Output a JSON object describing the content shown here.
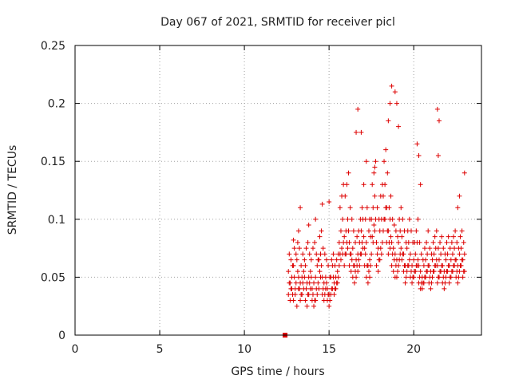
{
  "chart_data": {
    "type": "scatter",
    "title": "Day 067 of 2021, SRMTID for receiver picl",
    "xlabel": "GPS time / hours",
    "ylabel": "SRMTID / TECUs",
    "xlim": [
      0,
      24
    ],
    "ylim": [
      0,
      0.25
    ],
    "xticks": [
      0,
      5,
      10,
      15,
      20
    ],
    "xtick_labels": [
      "0",
      "5",
      "10",
      "15",
      "20"
    ],
    "yticks": [
      0,
      0.05,
      0.1,
      0.15,
      0.2,
      0.25
    ],
    "ytick_labels": [
      "0",
      "0.05",
      "0.1",
      "0.15",
      "0.2",
      "0.25"
    ],
    "grid": true,
    "marker": "plus",
    "color": "#dd0000",
    "square_marker": {
      "x": 12.4,
      "y": 0.0
    },
    "series": [
      {
        "name": "SRMTID",
        "x": [
          12.6,
          12.7,
          12.8,
          12.9,
          13.0,
          13.1,
          13.2,
          13.3,
          13.4,
          13.5,
          13.6,
          13.7,
          13.8,
          13.9,
          14.0,
          14.1,
          14.2,
          14.3,
          14.4,
          14.5,
          14.6,
          14.7,
          14.8,
          14.9,
          15.0,
          15.1,
          15.2,
          15.3,
          15.4,
          15.5,
          15.6,
          15.7,
          15.8,
          15.9,
          16.0,
          16.1,
          16.2,
          16.3,
          16.4,
          16.5,
          16.6,
          16.7,
          16.8,
          16.9,
          17.0,
          17.1,
          17.2,
          17.3,
          17.4,
          17.5,
          17.6,
          17.7,
          17.8,
          17.9,
          18.0,
          18.1,
          18.2,
          18.3,
          18.4,
          18.5,
          18.6,
          18.7,
          18.8,
          18.9,
          19.0,
          19.1,
          19.2,
          19.3,
          19.4,
          19.5,
          19.6,
          19.7,
          19.8,
          19.9,
          20.0,
          20.1,
          20.2,
          20.3,
          20.4,
          20.5,
          20.6,
          20.7,
          20.8,
          20.9,
          21.0,
          21.1,
          21.2,
          21.3,
          21.4,
          21.5,
          21.6,
          21.7,
          21.8,
          21.9,
          22.0,
          22.1,
          22.2,
          22.3,
          22.4,
          22.5,
          22.6,
          22.7,
          22.8,
          22.9,
          23.0,
          12.6,
          12.7,
          12.8,
          12.9,
          13.0,
          13.1,
          13.2,
          13.3,
          13.4,
          13.5,
          13.6,
          13.7,
          13.8,
          13.9,
          14.0,
          14.1,
          14.2,
          14.3,
          14.4,
          14.5,
          14.6,
          14.7,
          14.8,
          14.9,
          15.0,
          15.1,
          15.2,
          15.3,
          15.4,
          15.5,
          15.6,
          15.7,
          15.8,
          15.9,
          16.0,
          16.1,
          16.2,
          16.3,
          16.4,
          16.5,
          16.6,
          16.7,
          16.8,
          16.9,
          17.0,
          17.1,
          17.2,
          17.3,
          17.4,
          17.5,
          17.6,
          17.7,
          17.8,
          17.9,
          18.0,
          18.1,
          18.2,
          18.3,
          18.4,
          18.5,
          18.6,
          18.7,
          18.8,
          18.9,
          19.0,
          19.1,
          19.2,
          19.3,
          19.4,
          19.5,
          19.6,
          19.7,
          19.8,
          19.9,
          20.0,
          20.1,
          20.2,
          20.3,
          20.4,
          20.5,
          20.6,
          20.7,
          20.8,
          20.9,
          21.0,
          21.1,
          21.2,
          21.3,
          21.4,
          21.5,
          21.6,
          21.7,
          21.8,
          21.9,
          22.0,
          22.1,
          22.2,
          22.3,
          22.4,
          22.5,
          22.6,
          22.7,
          22.8,
          22.9,
          23.0,
          12.65,
          12.75,
          12.85,
          12.95,
          13.05,
          13.15,
          13.25,
          13.35,
          13.45,
          13.55,
          13.65,
          13.75,
          13.85,
          13.95,
          14.05,
          14.15,
          14.25,
          14.35,
          14.45,
          14.55,
          14.65,
          14.75,
          14.85,
          14.95,
          15.05,
          15.15,
          15.25,
          15.35,
          15.45,
          15.55,
          15.65,
          15.75,
          15.85,
          15.95,
          16.05,
          16.15,
          16.25,
          16.35,
          16.45,
          16.55,
          16.65,
          16.75,
          16.85,
          16.95,
          17.05,
          17.15,
          17.25,
          17.35,
          17.45,
          17.55,
          17.65,
          17.75,
          17.85,
          17.95,
          18.05,
          18.15,
          18.25,
          18.35,
          18.45,
          18.55,
          18.65,
          18.75,
          18.85,
          18.95,
          19.05,
          19.15,
          19.25,
          19.35,
          19.45,
          19.55,
          19.65,
          19.75,
          19.85,
          19.95,
          20.05,
          20.15,
          20.25,
          20.35,
          20.45,
          20.55,
          20.65,
          20.75,
          20.85,
          20.95,
          21.05,
          21.15,
          21.25,
          21.35,
          21.45,
          21.55,
          21.65,
          21.75,
          21.85,
          21.95,
          22.05,
          22.15,
          22.25,
          22.35,
          22.45,
          22.55,
          22.65,
          22.75,
          22.85,
          22.95,
          12.65,
          12.75,
          12.85,
          12.95,
          13.05,
          13.15,
          13.25,
          13.35,
          13.45,
          13.55,
          13.65,
          13.75,
          13.85,
          13.95,
          14.05,
          14.15,
          14.25,
          14.35,
          14.45,
          14.55,
          14.65,
          14.75,
          14.85,
          14.95,
          15.05,
          15.15,
          15.25,
          15.35,
          15.45,
          15.55,
          15.65,
          15.75,
          15.85,
          15.95,
          16.05,
          16.15,
          16.25,
          16.35,
          16.45,
          16.55,
          16.65,
          16.75,
          16.85,
          16.95,
          17.05,
          17.15,
          17.25,
          17.35,
          17.45,
          17.55,
          17.65,
          17.75,
          17.85,
          17.95,
          18.05,
          18.15,
          18.25,
          18.35,
          18.45,
          18.55,
          18.65,
          18.75,
          18.85,
          18.95,
          19.05,
          19.15,
          19.25,
          19.35,
          19.45,
          19.55,
          19.65,
          19.75,
          19.85,
          19.95,
          20.05,
          20.15,
          20.25,
          20.35,
          20.45,
          20.55,
          20.65,
          20.75,
          20.85,
          20.95,
          21.05,
          21.15,
          21.25,
          21.35,
          21.45,
          21.55,
          21.65,
          21.75,
          21.85,
          21.95,
          22.05,
          22.15,
          22.25,
          22.35,
          22.45,
          22.55,
          22.65,
          22.75,
          22.85,
          22.95,
          12.9,
          13.2,
          13.3,
          13.8,
          14.2,
          14.6,
          15.0,
          16.6,
          16.7,
          16.9,
          17.2,
          17.4,
          17.7,
          18.5,
          18.6,
          18.7,
          18.9,
          19.0,
          19.1,
          20.2,
          20.3,
          20.4,
          21.4,
          21.5,
          21.45,
          22.6,
          22.7,
          23.0
        ],
        "y": [
          0.055,
          0.045,
          0.05,
          0.06,
          0.04,
          0.065,
          0.05,
          0.045,
          0.05,
          0.055,
          0.06,
          0.045,
          0.05,
          0.055,
          0.04,
          0.045,
          0.05,
          0.06,
          0.065,
          0.07,
          0.05,
          0.045,
          0.05,
          0.04,
          0.035,
          0.05,
          0.06,
          0.045,
          0.05,
          0.055,
          0.08,
          0.09,
          0.1,
          0.085,
          0.09,
          0.1,
          0.08,
          0.07,
          0.075,
          0.06,
          0.065,
          0.07,
          0.08,
          0.09,
          0.1,
          0.075,
          0.08,
          0.06,
          0.065,
          0.1,
          0.11,
          0.12,
          0.08,
          0.075,
          0.09,
          0.1,
          0.12,
          0.13,
          0.11,
          0.09,
          0.1,
          0.08,
          0.075,
          0.07,
          0.065,
          0.08,
          0.09,
          0.085,
          0.07,
          0.06,
          0.075,
          0.08,
          0.07,
          0.06,
          0.065,
          0.07,
          0.08,
          0.06,
          0.055,
          0.05,
          0.06,
          0.065,
          0.07,
          0.06,
          0.055,
          0.065,
          0.07,
          0.075,
          0.06,
          0.065,
          0.07,
          0.06,
          0.055,
          0.065,
          0.07,
          0.06,
          0.065,
          0.07,
          0.075,
          0.065,
          0.06,
          0.07,
          0.075,
          0.065,
          0.07,
          0.035,
          0.03,
          0.04,
          0.03,
          0.035,
          0.025,
          0.04,
          0.03,
          0.035,
          0.04,
          0.03,
          0.025,
          0.035,
          0.04,
          0.03,
          0.025,
          0.03,
          0.035,
          0.04,
          0.05,
          0.035,
          0.03,
          0.04,
          0.03,
          0.025,
          0.035,
          0.04,
          0.035,
          0.04,
          0.045,
          0.06,
          0.065,
          0.07,
          0.06,
          0.07,
          0.075,
          0.06,
          0.055,
          0.05,
          0.045,
          0.05,
          0.055,
          0.06,
          0.07,
          0.075,
          0.06,
          0.05,
          0.045,
          0.05,
          0.07,
          0.08,
          0.09,
          0.06,
          0.055,
          0.065,
          0.07,
          0.09,
          0.1,
          0.08,
          0.07,
          0.075,
          0.06,
          0.055,
          0.05,
          0.05,
          0.06,
          0.07,
          0.065,
          0.055,
          0.045,
          0.055,
          0.06,
          0.05,
          0.045,
          0.05,
          0.055,
          0.06,
          0.045,
          0.04,
          0.04,
          0.045,
          0.05,
          0.055,
          0.045,
          0.04,
          0.05,
          0.055,
          0.06,
          0.045,
          0.05,
          0.055,
          0.045,
          0.04,
          0.05,
          0.055,
          0.045,
          0.05,
          0.055,
          0.06,
          0.05,
          0.045,
          0.055,
          0.06,
          0.05,
          0.055,
          0.07,
          0.065,
          0.06,
          0.075,
          0.07,
          0.08,
          0.075,
          0.06,
          0.07,
          0.065,
          0.075,
          0.08,
          0.07,
          0.065,
          0.075,
          0.08,
          0.07,
          0.065,
          0.085,
          0.09,
          0.075,
          0.07,
          0.065,
          0.06,
          0.05,
          0.065,
          0.07,
          0.06,
          0.065,
          0.07,
          0.11,
          0.12,
          0.13,
          0.12,
          0.13,
          0.14,
          0.11,
          0.1,
          0.09,
          0.08,
          0.085,
          0.09,
          0.1,
          0.11,
          0.13,
          0.1,
          0.11,
          0.09,
          0.085,
          0.13,
          0.14,
          0.15,
          0.11,
          0.1,
          0.12,
          0.13,
          0.15,
          0.16,
          0.14,
          0.11,
          0.12,
          0.1,
          0.095,
          0.09,
          0.085,
          0.1,
          0.11,
          0.1,
          0.09,
          0.08,
          0.09,
          0.1,
          0.09,
          0.08,
          0.08,
          0.09,
          0.1,
          0.08,
          0.07,
          0.065,
          0.075,
          0.08,
          0.09,
          0.075,
          0.07,
          0.08,
          0.085,
          0.09,
          0.075,
          0.08,
          0.085,
          0.075,
          0.07,
          0.08,
          0.085,
          0.075,
          0.08,
          0.085,
          0.09,
          0.08,
          0.075,
          0.085,
          0.09,
          0.08,
          0.045,
          0.04,
          0.035,
          0.05,
          0.045,
          0.055,
          0.04,
          0.035,
          0.045,
          0.05,
          0.04,
          0.035,
          0.045,
          0.05,
          0.035,
          0.03,
          0.04,
          0.045,
          0.055,
          0.06,
          0.04,
          0.035,
          0.045,
          0.035,
          0.03,
          0.04,
          0.05,
          0.04,
          0.045,
          0.05,
          0.07,
          0.075,
          0.08,
          0.07,
          0.08,
          0.09,
          0.07,
          0.065,
          0.06,
          0.055,
          0.06,
          0.065,
          0.07,
          0.08,
          0.085,
          0.07,
          0.06,
          0.055,
          0.06,
          0.085,
          0.095,
          0.1,
          0.07,
          0.065,
          0.075,
          0.08,
          0.1,
          0.11,
          0.09,
          0.08,
          0.085,
          0.07,
          0.065,
          0.06,
          0.055,
          0.065,
          0.075,
          0.07,
          0.06,
          0.05,
          0.06,
          0.065,
          0.055,
          0.05,
          0.055,
          0.06,
          0.065,
          0.05,
          0.045,
          0.045,
          0.05,
          0.055,
          0.06,
          0.05,
          0.045,
          0.055,
          0.06,
          0.065,
          0.05,
          0.055,
          0.06,
          0.05,
          0.045,
          0.055,
          0.06,
          0.05,
          0.055,
          0.06,
          0.065,
          0.055,
          0.05,
          0.06,
          0.065,
          0.055,
          0.082,
          0.09,
          0.11,
          0.095,
          0.1,
          0.113,
          0.115,
          0.175,
          0.195,
          0.175,
          0.15,
          0.1,
          0.145,
          0.185,
          0.2,
          0.215,
          0.21,
          0.2,
          0.18,
          0.165,
          0.155,
          0.13,
          0.195,
          0.185,
          0.155,
          0.11,
          0.12,
          0.14
        ]
      }
    ]
  }
}
